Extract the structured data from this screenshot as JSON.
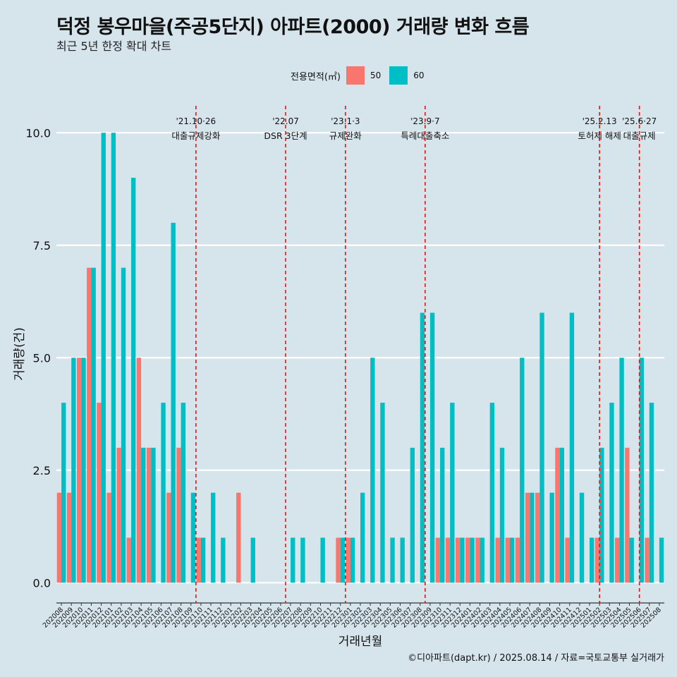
{
  "title": "덕정 봉우마을(주공5단지) 아파트(2000) 거래량 변화 흐름",
  "subtitle": "최근 5년 한정 확대 차트",
  "caption": "©디아파트(dapt.kr) / 2025.08.14 / 자료=국토교통부 실거래가",
  "legend": {
    "title": "전용면적(㎡)",
    "items": [
      {
        "label": "50",
        "color": "#F8766D"
      },
      {
        "label": "60",
        "color": "#00BFC4"
      }
    ]
  },
  "chart_data": {
    "type": "bar",
    "title": "덕정 봉우마을(주공5단지) 아파트(2000) 거래량 변화 흐름",
    "xlabel": "거래년월",
    "ylabel": "거래량(건)",
    "ylim": [
      -0.45,
      10.6
    ],
    "yticks": [
      0.0,
      2.5,
      5.0,
      7.5,
      10.0
    ],
    "ytick_labels": [
      "0.0",
      "2.5",
      "5.0",
      "7.5",
      "10.0"
    ],
    "categories": [
      "202008",
      "202009",
      "202010",
      "202011",
      "202012",
      "202101",
      "202102",
      "202103",
      "202104",
      "202105",
      "202106",
      "202107",
      "202108",
      "202109",
      "202110",
      "202111",
      "202112",
      "202201",
      "202202",
      "202203",
      "202204",
      "202205",
      "202206",
      "202207",
      "202208",
      "202209",
      "202210",
      "202211",
      "202212",
      "202301",
      "202302",
      "202303",
      "202304",
      "202305",
      "202306",
      "202307",
      "202308",
      "202309",
      "202310",
      "202311",
      "202312",
      "202401",
      "202402",
      "202403",
      "202404",
      "202405",
      "202406",
      "202407",
      "202408",
      "202409",
      "202410",
      "202411",
      "202412",
      "202501",
      "202502",
      "202503",
      "202504",
      "202505",
      "202506",
      "202507",
      "202508"
    ],
    "series": [
      {
        "name": "50",
        "color": "#F8766D",
        "values": [
          2,
          2,
          5,
          7,
          4,
          2,
          3,
          1,
          5,
          3,
          0,
          2,
          3,
          0,
          1,
          0,
          0,
          0,
          2,
          0,
          0,
          0,
          0,
          0,
          0,
          0,
          0,
          0,
          1,
          1,
          0,
          0,
          0,
          0,
          0,
          0,
          0,
          0,
          1,
          1,
          1,
          1,
          1,
          0,
          1,
          1,
          1,
          2,
          2,
          0,
          3,
          1,
          0,
          0,
          1,
          0,
          1,
          3,
          0,
          1,
          0
        ]
      },
      {
        "name": "60",
        "color": "#00BFC4",
        "values": [
          4,
          5,
          5,
          7,
          10,
          10,
          7,
          9,
          3,
          3,
          4,
          8,
          4,
          2,
          1,
          2,
          1,
          0,
          0,
          1,
          0,
          0,
          0,
          1,
          1,
          0,
          1,
          0,
          1,
          1,
          2,
          5,
          4,
          1,
          1,
          3,
          6,
          6,
          3,
          4,
          1,
          1,
          1,
          4,
          3,
          1,
          5,
          2,
          6,
          2,
          3,
          6,
          2,
          1,
          3,
          4,
          5,
          1,
          5,
          4,
          1
        ]
      }
    ],
    "events": [
      {
        "pos": 14.0,
        "date": "'21.10·26",
        "label": "대출규제강화"
      },
      {
        "pos": 23.0,
        "date": "'22.07",
        "label": "DSR 3단계"
      },
      {
        "pos": 29.0,
        "date": "'23.1·3",
        "label": "규제완화"
      },
      {
        "pos": 37.0,
        "date": "'23.9·7",
        "label": "특례대출축소"
      },
      {
        "pos": 54.5,
        "date": "'25.2.13",
        "label": "토허제 해제"
      },
      {
        "pos": 58.5,
        "date": "'25.6·27",
        "label": "대출규제"
      }
    ]
  }
}
